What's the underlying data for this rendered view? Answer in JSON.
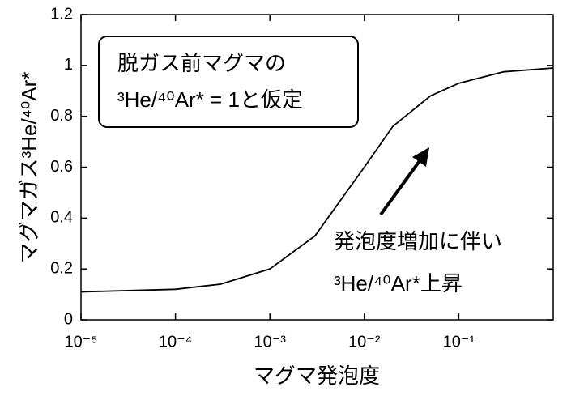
{
  "chart_data": {
    "type": "line",
    "xlabel": "マグマ発泡度",
    "ylabel": "マグマガス³He/⁴⁰Ar*",
    "annotations": [
      "脱ガス前マグマの",
      "³He/⁴⁰Ar* = 1と仮定",
      "発泡度増加に伴い",
      "³He/⁴⁰Ar*上昇"
    ],
    "log_x": true,
    "x": [
      1e-05,
      0.0001,
      0.0003,
      0.001,
      0.003,
      0.01,
      0.02,
      0.05,
      0.1,
      0.3,
      1
    ],
    "series": [
      {
        "color": "#000000",
        "values": [
          0.11,
          0.12,
          0.14,
          0.2,
          0.33,
          0.6,
          0.76,
          0.88,
          0.93,
          0.975,
          0.99
        ]
      }
    ],
    "xlim": [
      1e-05,
      1
    ],
    "xticks": [
      {
        "value": 1e-05,
        "label": "10⁻⁵"
      },
      {
        "value": 0.0001,
        "label": "10⁻⁴"
      },
      {
        "value": 0.001,
        "label": "10⁻³"
      },
      {
        "value": 0.01,
        "label": "10⁻²"
      },
      {
        "value": 0.1,
        "label": "10⁻¹"
      }
    ],
    "ylim": [
      0,
      1.2
    ],
    "yticks": [
      0,
      0.2,
      0.4,
      0.6,
      0.8,
      1,
      1.2
    ]
  }
}
